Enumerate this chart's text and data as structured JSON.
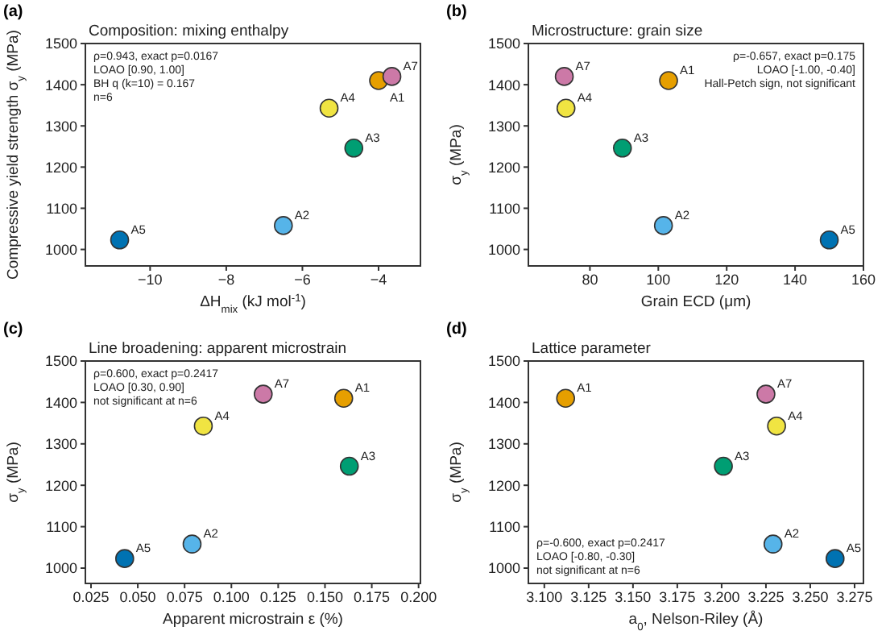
{
  "chart_data": [
    {
      "type": "scatter",
      "title": "Composition: mixing enthalpy",
      "xlabel": "ΔH$_{mix}$ (kJ mol$^{-1}$)",
      "ylabel": "Compressive yield strength σ$_{y}$ (MPa)",
      "annotations": [
        "(a)",
        "ρ=0.943, exact p=0.0167",
        "LOAO [0.90, 1.00]",
        "BH q (k=10) = 0.167",
        "n=6"
      ],
      "xlim": [
        -11.7,
        -2.9
      ],
      "xticks": [
        -10,
        -8,
        -6,
        -4
      ],
      "ylim": [
        960,
        1500
      ],
      "yticks": [
        1000,
        1100,
        1200,
        1300,
        1400,
        1500
      ],
      "grid": false,
      "legend": false,
      "marker": "circle",
      "series": [
        {
          "name": "A1",
          "color": "#e69f00",
          "x": [
            -4.0
          ],
          "values": [
            1410
          ]
        },
        {
          "name": "A2",
          "color": "#56b4e9",
          "x": [
            -6.5
          ],
          "values": [
            1058
          ]
        },
        {
          "name": "A3",
          "color": "#009e73",
          "x": [
            -4.65
          ],
          "values": [
            1246
          ]
        },
        {
          "name": "A4",
          "color": "#f0e442",
          "x": [
            -5.3
          ],
          "values": [
            1343
          ]
        },
        {
          "name": "A5",
          "color": "#0072b2",
          "x": [
            -10.8
          ],
          "values": [
            1023
          ]
        },
        {
          "name": "A7",
          "color": "#cc79a7",
          "x": [
            -3.65
          ],
          "values": [
            1420
          ]
        }
      ]
    },
    {
      "type": "scatter",
      "title": "Microstructure: grain size",
      "xlabel": "Grain ECD (μm)",
      "ylabel": "σ$_{y}$ (MPa)",
      "annotations": [
        "(b)",
        "ρ=-0.657, exact p=0.175",
        "LOAO [-1.00, -0.40]",
        "Hall-Petch sign, not significant"
      ],
      "xlim": [
        62,
        160
      ],
      "xticks": [
        80,
        100,
        120,
        140,
        160
      ],
      "ylim": [
        960,
        1500
      ],
      "yticks": [
        1000,
        1100,
        1200,
        1300,
        1400,
        1500
      ],
      "grid": false,
      "legend": false,
      "marker": "circle",
      "series": [
        {
          "name": "A1",
          "color": "#e69f00",
          "x": [
            103
          ],
          "values": [
            1410
          ]
        },
        {
          "name": "A2",
          "color": "#56b4e9",
          "x": [
            101.5
          ],
          "values": [
            1058
          ]
        },
        {
          "name": "A3",
          "color": "#009e73",
          "x": [
            89.5
          ],
          "values": [
            1246
          ]
        },
        {
          "name": "A4",
          "color": "#f0e442",
          "x": [
            73
          ],
          "values": [
            1343
          ]
        },
        {
          "name": "A5",
          "color": "#0072b2",
          "x": [
            150
          ],
          "values": [
            1023
          ]
        },
        {
          "name": "A7",
          "color": "#cc79a7",
          "x": [
            72.5
          ],
          "values": [
            1420
          ]
        }
      ]
    },
    {
      "type": "scatter",
      "title": "Line broadening: apparent microstrain",
      "xlabel": "Apparent microstrain ε (%)",
      "ylabel": "σ$_{y}$ (MPa)",
      "annotations": [
        "(c)",
        "ρ=0.600, exact p=0.2417",
        "LOAO [0.30, 0.90]",
        "not significant at n=6"
      ],
      "xlim": [
        0.022,
        0.201
      ],
      "xticks": [
        {
          "value": 0.025,
          "label": "0.025"
        },
        {
          "value": 0.05,
          "label": "0.050"
        },
        {
          "value": 0.075,
          "label": "0.075"
        },
        {
          "value": 0.1,
          "label": "0.100"
        },
        {
          "value": 0.125,
          "label": "0.125"
        },
        {
          "value": 0.15,
          "label": "0.150"
        },
        {
          "value": 0.175,
          "label": "0.175"
        },
        {
          "value": 0.2,
          "label": "0.200"
        }
      ],
      "ylim": [
        963,
        1500
      ],
      "yticks": [
        1000,
        1100,
        1200,
        1300,
        1400,
        1500
      ],
      "grid": false,
      "legend": false,
      "marker": "circle",
      "series": [
        {
          "name": "A1",
          "color": "#e69f00",
          "x": [
            0.16
          ],
          "values": [
            1410
          ]
        },
        {
          "name": "A2",
          "color": "#56b4e9",
          "x": [
            0.079
          ],
          "values": [
            1058
          ]
        },
        {
          "name": "A3",
          "color": "#009e73",
          "x": [
            0.163
          ],
          "values": [
            1246
          ]
        },
        {
          "name": "A4",
          "color": "#f0e442",
          "x": [
            0.085
          ],
          "values": [
            1343
          ]
        },
        {
          "name": "A5",
          "color": "#0072b2",
          "x": [
            0.043
          ],
          "values": [
            1023
          ]
        },
        {
          "name": "A7",
          "color": "#cc79a7",
          "x": [
            0.117
          ],
          "values": [
            1420
          ]
        }
      ]
    },
    {
      "type": "scatter",
      "title": "Lattice parameter",
      "xlabel": "a$_{0}$, Nelson-Riley (Å)",
      "ylabel": "σ$_{y}$ (MPa)",
      "annotations": [
        "(d)",
        "ρ=-0.600, exact p=0.2417",
        "LOAO [-0.80, -0.30]",
        "not significant at n=6"
      ],
      "xlim": [
        3.091,
        3.28
      ],
      "xticks": [
        {
          "value": 3.1,
          "label": "3.100"
        },
        {
          "value": 3.125,
          "label": "3.125"
        },
        {
          "value": 3.15,
          "label": "3.150"
        },
        {
          "value": 3.175,
          "label": "3.175"
        },
        {
          "value": 3.2,
          "label": "3.200"
        },
        {
          "value": 3.225,
          "label": "3.225"
        },
        {
          "value": 3.25,
          "label": "3.250"
        },
        {
          "value": 3.275,
          "label": "3.275"
        }
      ],
      "ylim": [
        963,
        1500
      ],
      "yticks": [
        1000,
        1100,
        1200,
        1300,
        1400,
        1500
      ],
      "grid": false,
      "legend": false,
      "marker": "circle",
      "series": [
        {
          "name": "A1",
          "color": "#e69f00",
          "x": [
            3.112
          ],
          "values": [
            1410
          ]
        },
        {
          "name": "A2",
          "color": "#56b4e9",
          "x": [
            3.229
          ],
          "values": [
            1058
          ]
        },
        {
          "name": "A3",
          "color": "#009e73",
          "x": [
            3.201
          ],
          "values": [
            1246
          ]
        },
        {
          "name": "A4",
          "color": "#f0e442",
          "x": [
            3.231
          ],
          "values": [
            1343
          ]
        },
        {
          "name": "A5",
          "color": "#0072b2",
          "x": [
            3.264
          ],
          "values": [
            1023
          ]
        },
        {
          "name": "A7",
          "color": "#cc79a7",
          "x": [
            3.225
          ],
          "values": [
            1420
          ]
        }
      ]
    }
  ]
}
